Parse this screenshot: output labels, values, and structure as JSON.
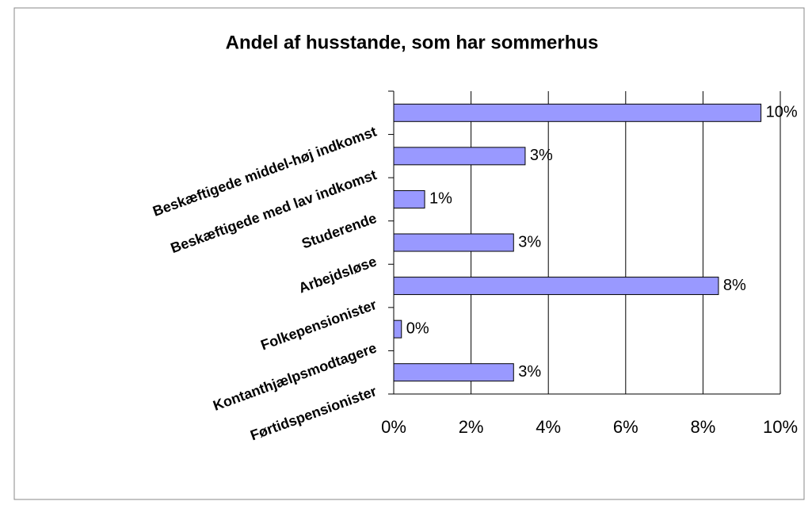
{
  "chart_data": {
    "type": "bar",
    "orientation": "horizontal",
    "title": "Andel af husstande, som har sommerhus",
    "categories": [
      "Beskæftigede middel-høj indkomst",
      "Beskæftigede med lav indkomst",
      "Studerende",
      "Arbejdsløse",
      "Folkepensionister",
      "Kontanthjælpsmodtagere",
      "Førtidspensionister"
    ],
    "values": [
      9.5,
      3.4,
      0.8,
      3.1,
      8.4,
      0.2,
      3.1
    ],
    "value_labels": [
      "10%",
      "3%",
      "1%",
      "3%",
      "8%",
      "0%",
      "3%"
    ],
    "color": "#9999ff",
    "xlim": [
      0,
      10
    ],
    "xticks": [
      {
        "value": 0,
        "label": "0%"
      },
      {
        "value": 2,
        "label": "2%"
      },
      {
        "value": 4,
        "label": "4%"
      },
      {
        "value": 6,
        "label": "6%"
      },
      {
        "value": 8,
        "label": "8%"
      },
      {
        "value": 10,
        "label": "10%"
      }
    ],
    "grid": true
  }
}
